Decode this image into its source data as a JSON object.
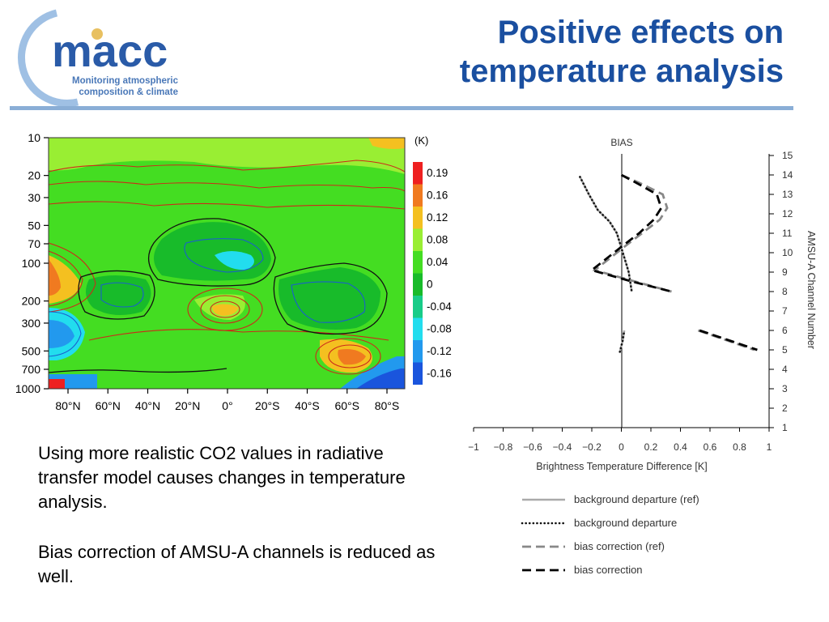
{
  "header": {
    "title_line1": "Positive effects on",
    "title_line2": "temperature analysis",
    "logo_word": "macc",
    "logo_tagline1": "Monitoring atmospheric",
    "logo_tagline2": "composition & climate"
  },
  "body": {
    "paragraph1": "Using more realistic CO2 values in radiative transfer model causes changes in temperature analysis.",
    "paragraph2": "Bias correction of AMSU-A channels is reduced as well."
  },
  "colors": {
    "title": "#1a4fa0",
    "rule": "#8aaed6",
    "logo_blue": "#2a5ba8",
    "logo_light": "#9fc0e4",
    "heat_green": "#44dd22",
    "contour_red": "#cc2a1a",
    "contour_blue": "#1a5fcc"
  },
  "chart_data": [
    {
      "type": "heatmap",
      "unit_label": "(K)",
      "y_ticks": [
        "10",
        "20",
        "30",
        "50",
        "70",
        "100",
        "200",
        "300",
        "500",
        "700",
        "1000"
      ],
      "x_ticks": [
        "80°N",
        "60°N",
        "40°N",
        "20°N",
        "0°",
        "20°S",
        "40°S",
        "60°S",
        "80°S"
      ],
      "colorbar_labels": [
        "0.19",
        "0.16",
        "0.12",
        "0.08",
        "0.04",
        "0",
        "-0.04",
        "-0.08",
        "-0.12",
        "-0.16"
      ],
      "colorbar_colors": [
        "#ee2020",
        "#f07a20",
        "#f4c020",
        "#99ee33",
        "#44dd22",
        "#18bb2a",
        "#18cc88",
        "#22ddee",
        "#2299ee",
        "#1a55dd"
      ]
    },
    {
      "type": "line",
      "title": "BIAS",
      "xlabel": "Brightness Temperature Difference [K]",
      "ylabel": "AMSU-A Channel Number",
      "xlim": [
        -1,
        1
      ],
      "ylim": [
        1,
        15
      ],
      "x_tick_labels": [
        "−1",
        "−0.8",
        "−0.6",
        "−0.4",
        "−0.2",
        "0",
        "0.2",
        "0.4",
        "0.6",
        "0.8",
        "1"
      ],
      "y_tick_labels": [
        "1",
        "2",
        "3",
        "4",
        "5",
        "6",
        "7",
        "8",
        "9",
        "10",
        "11",
        "12",
        "13",
        "14",
        "15"
      ],
      "series": [
        {
          "name": "background departure (ref)",
          "style": "solid",
          "color": "#aaaaaa",
          "segments": [
            [
              [
                -0.28,
                13.9
              ],
              [
                -0.22,
                13.0
              ],
              [
                -0.16,
                12.2
              ],
              [
                -0.08,
                11.6
              ],
              [
                -0.03,
                11.0
              ],
              [
                -0.01,
                10.5
              ],
              [
                0.01,
                10.0
              ],
              [
                0.03,
                9.5
              ],
              [
                0.05,
                9.0
              ],
              [
                0.06,
                8.5
              ],
              [
                0.07,
                8.0
              ]
            ],
            [
              [
                -0.01,
                4.9
              ],
              [
                0.01,
                5.5
              ],
              [
                0.02,
                6.0
              ]
            ]
          ]
        },
        {
          "name": "background departure",
          "style": "dotted",
          "color": "#111111",
          "segments": [
            [
              [
                -0.28,
                13.9
              ],
              [
                -0.22,
                13.0
              ],
              [
                -0.16,
                12.2
              ],
              [
                -0.08,
                11.6
              ],
              [
                -0.03,
                11.0
              ],
              [
                -0.01,
                10.5
              ],
              [
                0.01,
                10.0
              ],
              [
                0.03,
                9.5
              ],
              [
                0.05,
                9.0
              ],
              [
                0.06,
                8.5
              ],
              [
                0.07,
                8.0
              ]
            ],
            [
              [
                -0.01,
                4.9
              ],
              [
                0.01,
                5.5
              ],
              [
                0.02,
                6.0
              ]
            ]
          ]
        },
        {
          "name": "bias correction (ref)",
          "style": "dashed",
          "color": "#888888",
          "segments": [
            [
              [
                0.0,
                14.0
              ],
              [
                0.12,
                13.6
              ],
              [
                0.28,
                13.0
              ],
              [
                0.31,
                12.3
              ],
              [
                0.26,
                11.7
              ],
              [
                0.14,
                11.0
              ],
              [
                0.02,
                10.3
              ],
              [
                -0.08,
                9.7
              ],
              [
                -0.18,
                9.1
              ],
              [
                0.1,
                8.5
              ],
              [
                0.34,
                8.0
              ]
            ],
            [
              [
                0.52,
                6.0
              ],
              [
                0.9,
                5.0
              ]
            ]
          ]
        },
        {
          "name": "bias correction",
          "style": "dashed",
          "color": "#000000",
          "segments": [
            [
              [
                0.0,
                14.0
              ],
              [
                0.1,
                13.6
              ],
              [
                0.24,
                13.0
              ],
              [
                0.27,
                12.3
              ],
              [
                0.22,
                11.7
              ],
              [
                0.12,
                11.0
              ],
              [
                0.0,
                10.3
              ],
              [
                -0.1,
                9.7
              ],
              [
                -0.2,
                9.1
              ],
              [
                0.08,
                8.5
              ],
              [
                0.34,
                8.0
              ]
            ],
            [
              [
                0.53,
                6.0
              ],
              [
                0.92,
                5.0
              ]
            ]
          ]
        }
      ]
    }
  ]
}
